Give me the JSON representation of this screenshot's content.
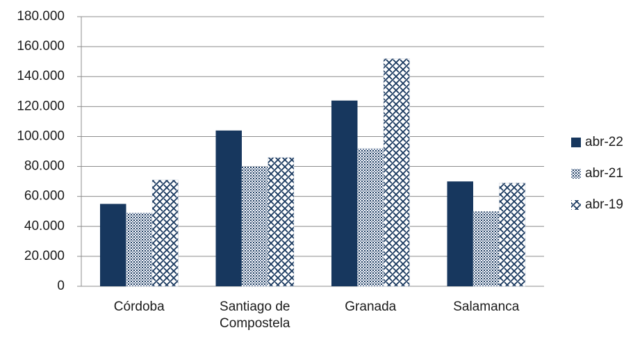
{
  "chart_data": {
    "type": "bar",
    "categories": [
      "Córdoba",
      "Santiago de Compostela",
      "Granada",
      "Salamanca"
    ],
    "series": [
      {
        "name": "abr-22",
        "color": "#17375e",
        "pattern": "solid",
        "values": [
          55000,
          104000,
          124000,
          70000
        ]
      },
      {
        "name": "abr-21",
        "color": "#17375e",
        "pattern": "dots",
        "values": [
          49000,
          80000,
          92000,
          50000
        ]
      },
      {
        "name": "abr-19",
        "color": "#17375e",
        "pattern": "zigzag",
        "values": [
          71000,
          86000,
          152000,
          69000
        ]
      }
    ],
    "ylim": [
      0,
      180000
    ],
    "yticks": [
      0,
      {
        "value": 20000,
        "label": "20.000"
      },
      {
        "value": 40000,
        "label": "40.000"
      },
      {
        "value": 60000,
        "label": "60.000"
      },
      {
        "value": 80000,
        "label": "80.000"
      },
      {
        "value": 100000,
        "label": "100.000"
      },
      {
        "value": 120000,
        "label": "120.000"
      },
      {
        "value": 140000,
        "label": "140.000"
      },
      {
        "value": 160000,
        "label": "160.000"
      },
      {
        "value": 180000,
        "label": "180.000"
      }
    ],
    "grid": true,
    "legend": "right"
  }
}
